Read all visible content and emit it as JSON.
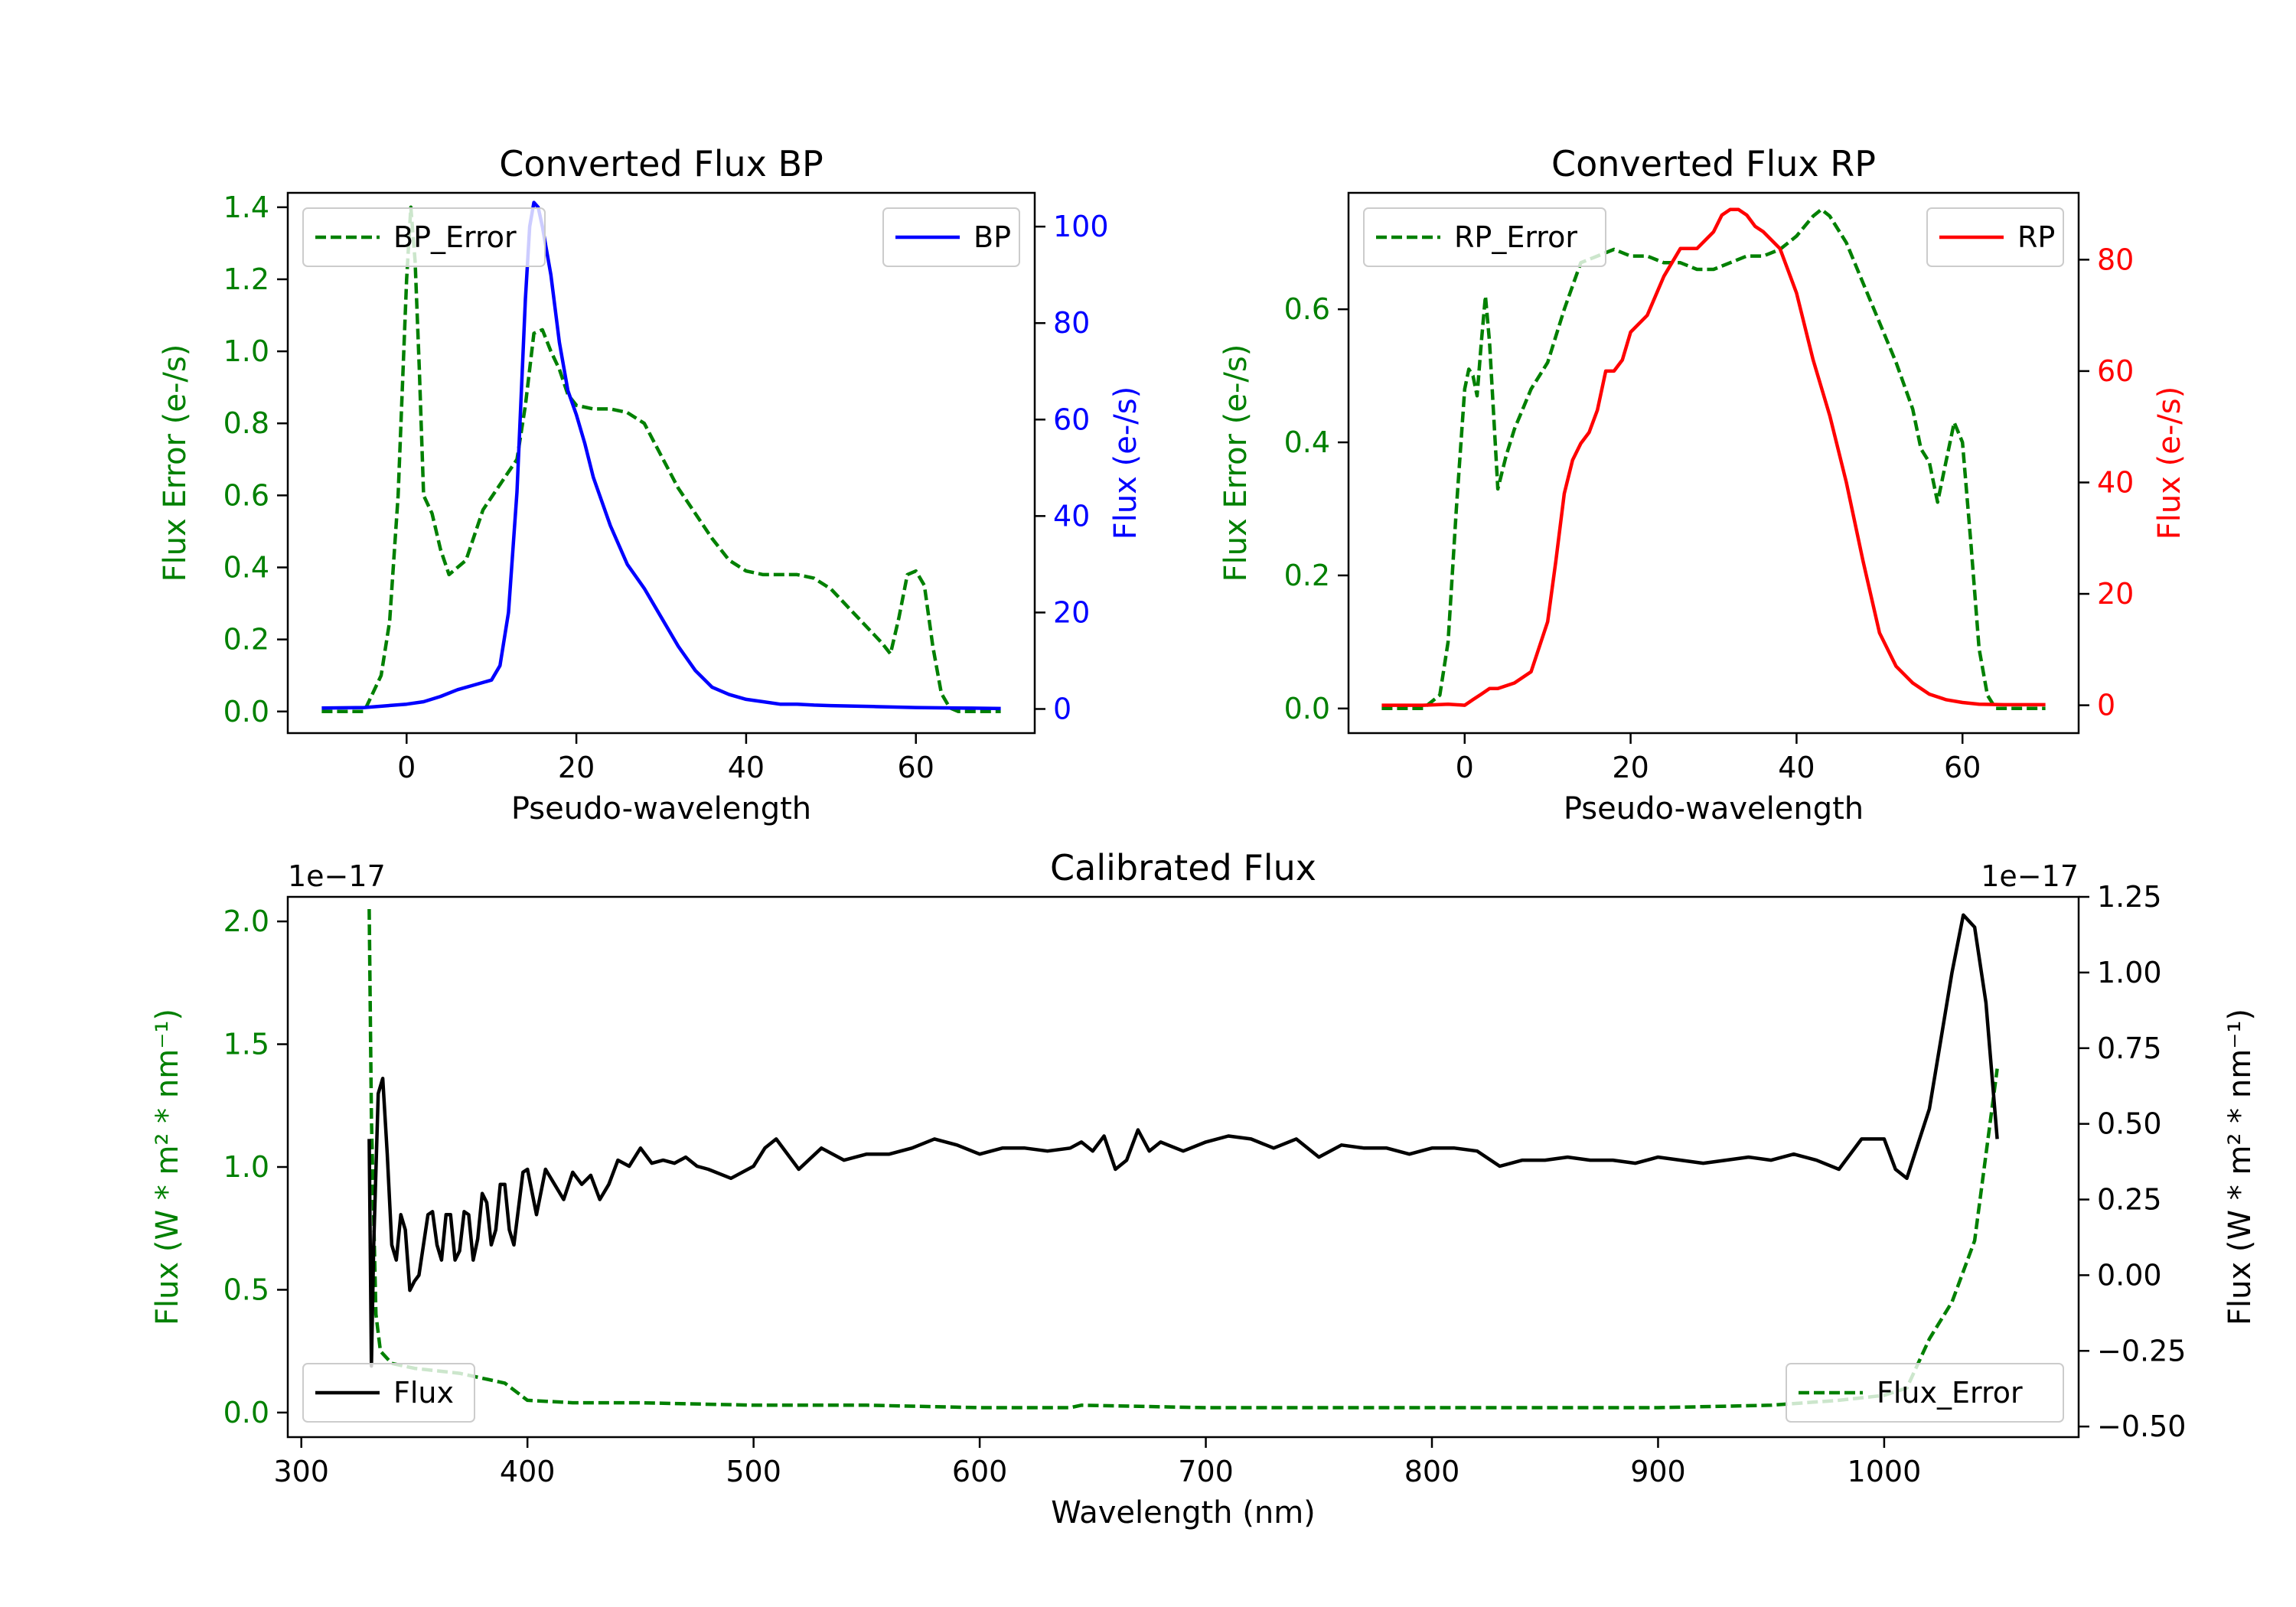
{
  "chart_data": [
    {
      "id": "bp",
      "type": "line",
      "title": "Converted Flux BP",
      "xlabel": "Pseudo-wavelength",
      "ylabel_left": "Flux Error (e-/s)",
      "ylabel_right": "Flux (e-/s)",
      "xlim": [
        -14,
        74
      ],
      "ylim_left": [
        -0.06,
        1.44
      ],
      "ylim_right": [
        -5,
        107
      ],
      "xticks": [
        0,
        20,
        40,
        60
      ],
      "yticks_left": [
        0.0,
        0.2,
        0.4,
        0.6,
        0.8,
        1.0,
        1.2,
        1.4
      ],
      "yticks_right": [
        0,
        20,
        40,
        60,
        80,
        100
      ],
      "colors": {
        "left_axis": "#008000",
        "right_axis": "#0000ff"
      },
      "series": [
        {
          "name": "BP_Error",
          "axis": "left",
          "color": "#008000",
          "dash": true,
          "x": [
            -10,
            -5,
            -3,
            -2,
            -1,
            0,
            0.5,
            1,
            1.5,
            2,
            3,
            4,
            5,
            7,
            9,
            11,
            13,
            14,
            15,
            16,
            17,
            18,
            19,
            20,
            22,
            24,
            26,
            28,
            30,
            32,
            34,
            36,
            38,
            40,
            42,
            44,
            46,
            48,
            50,
            52,
            54,
            56,
            57,
            58,
            59,
            60,
            61,
            62,
            63,
            64,
            65,
            66,
            68,
            70
          ],
          "y": [
            0.0,
            0.0,
            0.1,
            0.25,
            0.6,
            1.2,
            1.4,
            1.25,
            0.95,
            0.6,
            0.55,
            0.45,
            0.38,
            0.42,
            0.56,
            0.63,
            0.7,
            0.85,
            1.05,
            1.06,
            1.0,
            0.95,
            0.88,
            0.85,
            0.84,
            0.84,
            0.83,
            0.8,
            0.71,
            0.62,
            0.55,
            0.48,
            0.42,
            0.39,
            0.38,
            0.38,
            0.38,
            0.37,
            0.34,
            0.29,
            0.24,
            0.19,
            0.16,
            0.26,
            0.38,
            0.39,
            0.35,
            0.18,
            0.05,
            0.01,
            0.0,
            0.0,
            0.0,
            0.0
          ]
        },
        {
          "name": "BP",
          "axis": "right",
          "color": "#0000ff",
          "dash": false,
          "x": [
            -10,
            -5,
            0,
            2,
            4,
            6,
            8,
            10,
            11,
            12,
            13,
            14,
            14.5,
            15,
            15.5,
            16,
            17,
            18,
            19,
            20,
            21,
            22,
            23,
            24,
            26,
            28,
            30,
            32,
            34,
            36,
            38,
            40,
            42,
            44,
            46,
            48,
            50,
            55,
            60,
            65,
            70
          ],
          "y": [
            0.2,
            0.3,
            1.0,
            1.5,
            2.6,
            4.0,
            5.0,
            6.0,
            9.0,
            20.0,
            45.0,
            85.0,
            100.0,
            105.0,
            104.0,
            100.0,
            90.0,
            76.0,
            66.0,
            61.0,
            55.0,
            48.0,
            43.0,
            38.0,
            30.0,
            25.0,
            19.0,
            13.0,
            8.0,
            4.5,
            3.0,
            2.0,
            1.5,
            1.0,
            1.0,
            0.8,
            0.7,
            0.5,
            0.3,
            0.2,
            0.1
          ]
        }
      ],
      "legend": [
        {
          "label": "BP_Error",
          "position": "upper-left"
        },
        {
          "label": "BP",
          "position": "upper-right"
        }
      ]
    },
    {
      "id": "rp",
      "type": "line",
      "title": "Converted Flux RP",
      "xlabel": "Pseudo-wavelength",
      "ylabel_left": "Flux Error (e-/s)",
      "ylabel_right": "Flux (e-/s)",
      "xlim": [
        -14,
        74
      ],
      "ylim_left": [
        -0.037,
        0.775
      ],
      "ylim_right": [
        -5,
        92
      ],
      "xticks": [
        0,
        20,
        40,
        60
      ],
      "yticks_left": [
        0.0,
        0.2,
        0.4,
        0.6
      ],
      "yticks_right": [
        0,
        20,
        40,
        60,
        80
      ],
      "colors": {
        "left_axis": "#008000",
        "right_axis": "#ff0000"
      },
      "series": [
        {
          "name": "RP_Error",
          "axis": "left",
          "color": "#008000",
          "dash": true,
          "x": [
            -10,
            -5,
            -3,
            -2,
            -1,
            0,
            0.5,
            1,
            1.5,
            2,
            2.5,
            3,
            4,
            5,
            6,
            8,
            10,
            12,
            14,
            16,
            18,
            20,
            22,
            24,
            26,
            28,
            30,
            32,
            34,
            36,
            38,
            40,
            42,
            43,
            44,
            46,
            48,
            50,
            52,
            54,
            55,
            56,
            57,
            58,
            59,
            60,
            61,
            62,
            63,
            64,
            66,
            70
          ],
          "y": [
            0.0,
            0.0,
            0.02,
            0.1,
            0.3,
            0.48,
            0.51,
            0.5,
            0.47,
            0.55,
            0.62,
            0.55,
            0.33,
            0.38,
            0.42,
            0.48,
            0.52,
            0.6,
            0.67,
            0.68,
            0.69,
            0.68,
            0.68,
            0.67,
            0.67,
            0.66,
            0.66,
            0.67,
            0.68,
            0.68,
            0.69,
            0.71,
            0.74,
            0.75,
            0.74,
            0.7,
            0.64,
            0.58,
            0.52,
            0.45,
            0.39,
            0.37,
            0.31,
            0.37,
            0.43,
            0.4,
            0.25,
            0.09,
            0.02,
            0.0,
            0.0,
            0.0
          ]
        },
        {
          "name": "RP",
          "axis": "right",
          "color": "#ff0000",
          "dash": false,
          "x": [
            -10,
            -5,
            -2,
            0,
            1,
            2,
            3,
            4,
            6,
            8,
            10,
            11,
            12,
            13,
            14,
            15,
            16,
            17,
            18,
            19,
            20,
            22,
            24,
            26,
            28,
            30,
            31,
            32,
            33,
            34,
            35,
            36,
            38,
            39,
            40,
            42,
            44,
            46,
            48,
            50,
            52,
            54,
            56,
            58,
            60,
            62,
            65,
            70
          ],
          "y": [
            0.0,
            0.0,
            0.2,
            0.0,
            1.0,
            2.0,
            3.0,
            3.0,
            4.0,
            6.0,
            15.0,
            26.0,
            38.0,
            44.0,
            47.0,
            49.0,
            53.0,
            60.0,
            60.0,
            62.0,
            67.0,
            70.0,
            77.0,
            82.0,
            82.0,
            85.0,
            88.0,
            89.0,
            89.0,
            88.0,
            86.0,
            85.0,
            82.0,
            78.0,
            74.0,
            62.0,
            52.0,
            40.0,
            26.0,
            13.0,
            7.0,
            4.0,
            2.0,
            1.0,
            0.5,
            0.2,
            0.1,
            0.1
          ]
        }
      ],
      "legend": [
        {
          "label": "RP_Error",
          "position": "upper-left"
        },
        {
          "label": "RP",
          "position": "upper-right"
        }
      ]
    },
    {
      "id": "cal",
      "type": "line",
      "title": "Calibrated Flux",
      "xlabel": "Wavelength (nm)",
      "ylabel_left": "Flux (W * m² * nm⁻¹)",
      "ylabel_right": "Flux (W * m² * nm⁻¹)",
      "offset_left": "1e−17",
      "offset_right": "1e−17",
      "xlim": [
        294,
        1086
      ],
      "ylim_left": [
        -0.1,
        2.1
      ],
      "ylim_right": [
        -0.535,
        1.25
      ],
      "xticks": [
        300,
        400,
        500,
        600,
        700,
        800,
        900,
        1000
      ],
      "yticks_left": [
        0.0,
        0.5,
        1.0,
        1.5,
        2.0
      ],
      "yticks_left_labels": [
        "0.0",
        "0.5",
        "1.0",
        "1.5",
        "2.0"
      ],
      "yticks_right": [
        -0.5,
        -0.25,
        0.0,
        0.25,
        0.5,
        0.75,
        1.0,
        1.25
      ],
      "yticks_right_labels": [
        "−0.50",
        "−0.25",
        "0.00",
        "0.25",
        "0.50",
        "0.75",
        "1.00",
        "1.25"
      ],
      "colors": {
        "left_axis": "#008000",
        "right_axis": "#000000"
      },
      "series": [
        {
          "name": "Flux_Error",
          "axis": "left",
          "color": "#008000",
          "dash": true,
          "x": [
            330,
            331,
            333,
            335,
            340,
            350,
            360,
            370,
            380,
            390,
            400,
            420,
            450,
            500,
            550,
            600,
            640,
            645,
            700,
            800,
            900,
            950,
            980,
            1000,
            1010,
            1020,
            1030,
            1040,
            1050
          ],
          "y": [
            2.05,
            1.2,
            0.4,
            0.25,
            0.2,
            0.18,
            0.17,
            0.16,
            0.14,
            0.12,
            0.05,
            0.04,
            0.04,
            0.03,
            0.03,
            0.02,
            0.02,
            0.03,
            0.02,
            0.02,
            0.02,
            0.03,
            0.05,
            0.07,
            0.1,
            0.3,
            0.45,
            0.7,
            1.4
          ]
        },
        {
          "name": "Flux",
          "axis": "right",
          "color": "#000000",
          "dash": false,
          "x": [
            330,
            331,
            332,
            334,
            336,
            338,
            340,
            342,
            344,
            346,
            348,
            350,
            352,
            354,
            356,
            358,
            360,
            362,
            364,
            366,
            368,
            370,
            372,
            374,
            376,
            378,
            380,
            382,
            384,
            386,
            388,
            390,
            392,
            394,
            396,
            398,
            400,
            404,
            408,
            412,
            416,
            420,
            424,
            428,
            432,
            436,
            440,
            445,
            450,
            455,
            460,
            465,
            470,
            475,
            480,
            490,
            500,
            505,
            510,
            520,
            530,
            540,
            550,
            560,
            570,
            580,
            590,
            600,
            610,
            620,
            630,
            640,
            645,
            650,
            655,
            660,
            665,
            670,
            675,
            680,
            690,
            700,
            710,
            720,
            730,
            740,
            750,
            760,
            770,
            780,
            790,
            800,
            810,
            820,
            830,
            840,
            850,
            860,
            870,
            880,
            890,
            900,
            910,
            920,
            930,
            940,
            950,
            960,
            970,
            980,
            990,
            1000,
            1005,
            1010,
            1020,
            1030,
            1035,
            1040,
            1045,
            1050
          ],
          "y": [
            0.45,
            -0.3,
            0.1,
            0.6,
            0.65,
            0.4,
            0.1,
            0.05,
            0.2,
            0.15,
            -0.05,
            -0.02,
            0.0,
            0.1,
            0.2,
            0.21,
            0.1,
            0.05,
            0.2,
            0.2,
            0.05,
            0.08,
            0.21,
            0.2,
            0.05,
            0.12,
            0.27,
            0.24,
            0.1,
            0.15,
            0.3,
            0.3,
            0.15,
            0.1,
            0.22,
            0.34,
            0.35,
            0.2,
            0.35,
            0.3,
            0.25,
            0.34,
            0.3,
            0.33,
            0.25,
            0.3,
            0.38,
            0.36,
            0.42,
            0.37,
            0.38,
            0.37,
            0.39,
            0.36,
            0.35,
            0.32,
            0.36,
            0.42,
            0.45,
            0.35,
            0.42,
            0.38,
            0.4,
            0.4,
            0.42,
            0.45,
            0.43,
            0.4,
            0.42,
            0.42,
            0.41,
            0.42,
            0.44,
            0.41,
            0.46,
            0.35,
            0.38,
            0.48,
            0.41,
            0.44,
            0.41,
            0.44,
            0.46,
            0.45,
            0.42,
            0.45,
            0.39,
            0.43,
            0.42,
            0.42,
            0.4,
            0.42,
            0.42,
            0.41,
            0.36,
            0.38,
            0.38,
            0.39,
            0.38,
            0.38,
            0.37,
            0.39,
            0.38,
            0.37,
            0.38,
            0.39,
            0.38,
            0.4,
            0.38,
            0.35,
            0.45,
            0.45,
            0.35,
            0.32,
            0.55,
            1.0,
            1.19,
            1.15,
            0.9,
            0.45
          ]
        }
      ],
      "legend": [
        {
          "label": "Flux",
          "position": "lower-left"
        },
        {
          "label": "Flux_Error",
          "position": "lower-right"
        }
      ]
    }
  ]
}
